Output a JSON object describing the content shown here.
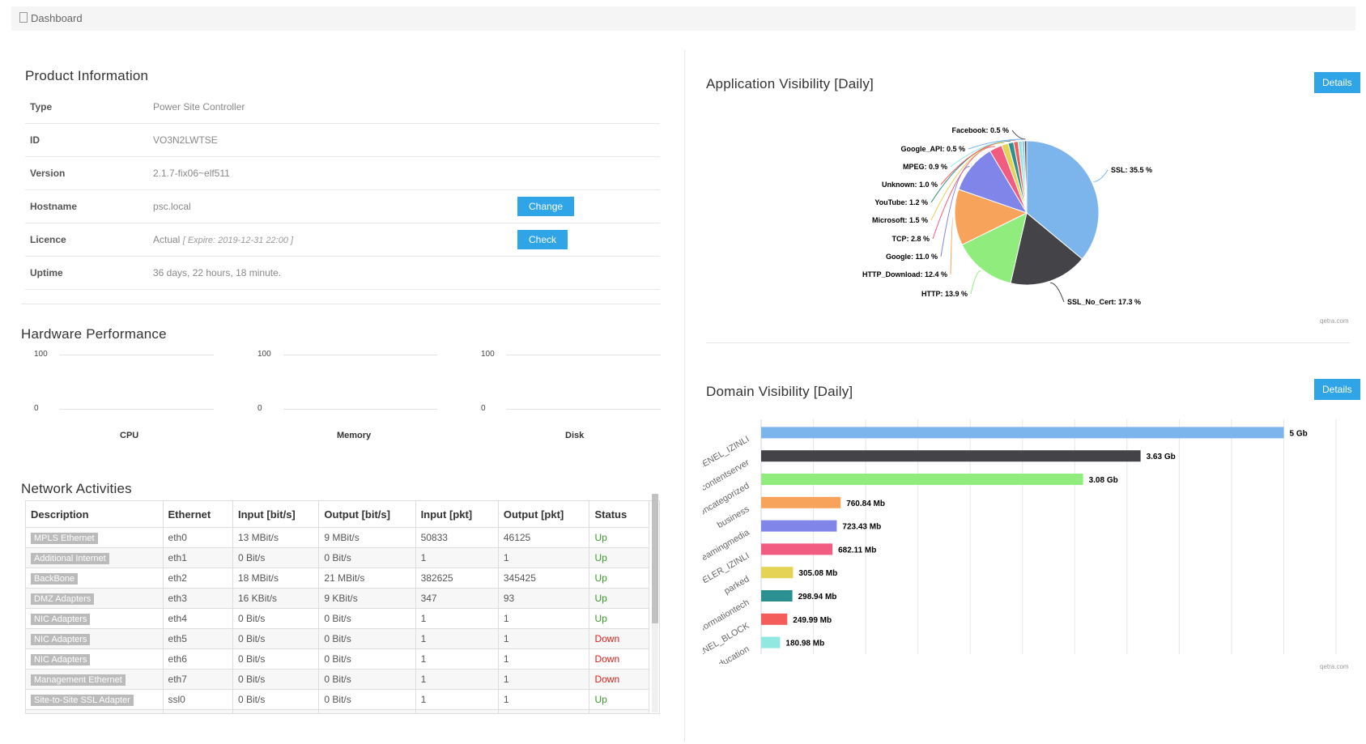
{
  "breadcrumb": "Dashboard",
  "product": {
    "title": "Product Information",
    "rows": [
      {
        "label": "Type",
        "value": "Power Site Controller",
        "note": "",
        "action": ""
      },
      {
        "label": "ID",
        "value": "VO3N2LWTSE",
        "note": "",
        "action": ""
      },
      {
        "label": "Version",
        "value": "2.1.7-fix06~elf511",
        "note": "",
        "action": ""
      },
      {
        "label": "Hostname",
        "value": "psc.local",
        "note": "",
        "action": "Change"
      },
      {
        "label": "Licence",
        "value": "Actual",
        "note": "[ Expire: 2019-12-31 22:00 ]",
        "action": "Check"
      },
      {
        "label": "Uptime",
        "value": "36 days, 22 hours, 18 minute.",
        "note": "",
        "action": ""
      }
    ]
  },
  "hardware": {
    "title": "Hardware Performance",
    "gauges": [
      {
        "name": "CPU",
        "max": "100",
        "min": "0"
      },
      {
        "name": "Memory",
        "max": "100",
        "min": "0"
      },
      {
        "name": "Disk",
        "max": "100",
        "min": "0"
      }
    ]
  },
  "network": {
    "title": "Network Activities",
    "columns": [
      "Description",
      "Ethernet",
      "Input [bit/s]",
      "Output [bit/s]",
      "Input [pkt]",
      "Output [pkt]",
      "Status"
    ],
    "rows": [
      [
        "MPLS Ethernet",
        "eth0",
        "13 MBit/s",
        "9 MBit/s",
        "50833",
        "46125",
        "Up"
      ],
      [
        "Additional Internet",
        "eth1",
        "0 Bit/s",
        "0 Bit/s",
        "1",
        "1",
        "Up"
      ],
      [
        "BackBone",
        "eth2",
        "18 MBit/s",
        "21 MBit/s",
        "382625",
        "345425",
        "Up"
      ],
      [
        "DMZ Adapters",
        "eth3",
        "16 KBit/s",
        "9 KBit/s",
        "347",
        "93",
        "Up"
      ],
      [
        "NIC Adapters",
        "eth4",
        "0 Bit/s",
        "0 Bit/s",
        "1",
        "1",
        "Up"
      ],
      [
        "NIC Adapters",
        "eth5",
        "0 Bit/s",
        "0 Bit/s",
        "1",
        "1",
        "Down"
      ],
      [
        "NIC Adapters",
        "eth6",
        "0 Bit/s",
        "0 Bit/s",
        "1",
        "1",
        "Down"
      ],
      [
        "Management Ethernet",
        "eth7",
        "0 Bit/s",
        "0 Bit/s",
        "1",
        "1",
        "Down"
      ],
      [
        "Site-to-Site SSL Adapter",
        "ssl0",
        "0 Bit/s",
        "0 Bit/s",
        "1",
        "1",
        "Up"
      ]
    ]
  },
  "app_panel": {
    "title": "Application Visibility [Daily]",
    "details": "Details",
    "credit": "qetra.com"
  },
  "domain_panel": {
    "title": "Domain Visibility [Daily]",
    "details": "Details",
    "credit": "qetra.com"
  },
  "colors": {
    "accent": "#2fa4e7",
    "up": "#3a9a2a",
    "down": "#e0201a"
  },
  "chart_data": [
    {
      "type": "pie",
      "title": "Application Visibility [Daily]",
      "slices": [
        {
          "label": "SSL",
          "value": 35.5,
          "color": "#7cb5ec"
        },
        {
          "label": "SSL_No_Cert",
          "value": 17.3,
          "color": "#434348"
        },
        {
          "label": "HTTP",
          "value": 13.9,
          "color": "#90ed7d"
        },
        {
          "label": "HTTP_Download",
          "value": 12.4,
          "color": "#f7a35c"
        },
        {
          "label": "Google",
          "value": 11.0,
          "color": "#8085e9"
        },
        {
          "label": "TCP",
          "value": 2.8,
          "color": "#f15c80"
        },
        {
          "label": "Microsoft",
          "value": 1.5,
          "color": "#e4d354"
        },
        {
          "label": "YouTube",
          "value": 1.2,
          "color": "#2b908f"
        },
        {
          "label": "Unknown",
          "value": 1.0,
          "color": "#f45b5b"
        },
        {
          "label": "MPEG",
          "value": 0.9,
          "color": "#91e8e1"
        },
        {
          "label": "Google_API",
          "value": 0.5,
          "color": "#7cb5ec"
        },
        {
          "label": "Facebook",
          "value": 0.5,
          "color": "#434348"
        }
      ]
    },
    {
      "type": "bar",
      "title": "Domain Visibility [Daily]",
      "orientation": "horizontal",
      "categories": [
        "USER_GENEL_IZINLI",
        "contentserver",
        "Uncategorized",
        "business",
        "streamingmedia",
        "GAZETELER_IZINLI",
        "parked",
        "informationtech",
        "USER_GENEL_BLOCK",
        "education"
      ],
      "values": [
        5.0,
        3.63,
        3.08,
        0.76084,
        0.72343,
        0.68211,
        0.30508,
        0.29894,
        0.24999,
        0.18098
      ],
      "unit": "Gb",
      "labels": [
        "5 Gb",
        "3.63 Gb",
        "3.08 Gb",
        "760.84 Mb",
        "723.43 Mb",
        "682.11 Mb",
        "305.08 Mb",
        "298.94 Mb",
        "249.99 Mb",
        "180.98 Mb"
      ],
      "colors": [
        "#7cb5ec",
        "#434348",
        "#90ed7d",
        "#f7a35c",
        "#8085e9",
        "#f15c80",
        "#e4d354",
        "#2b908f",
        "#f45b5b",
        "#91e8e1"
      ],
      "xlim": [
        0,
        5.5
      ],
      "grid": true
    }
  ]
}
